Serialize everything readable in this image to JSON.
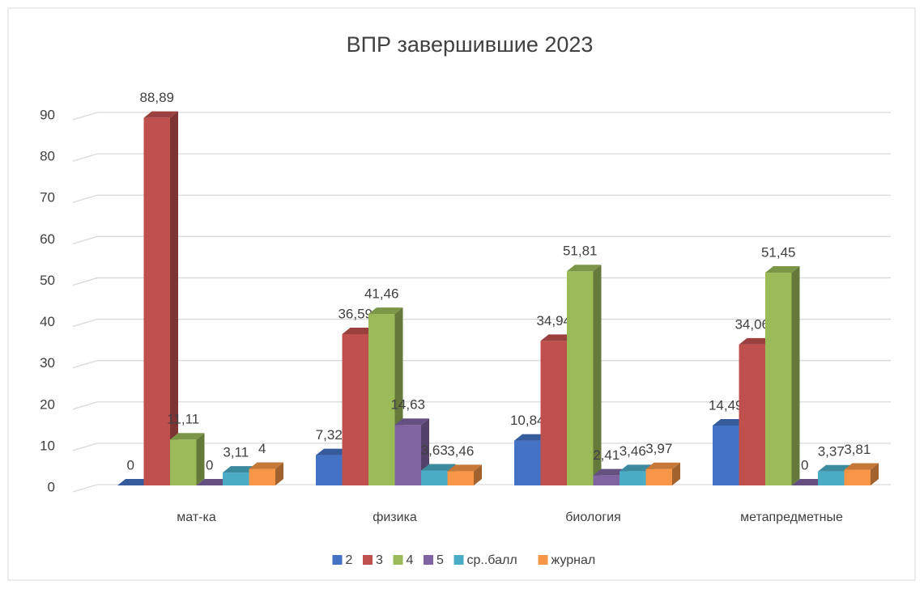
{
  "chart_data": {
    "type": "bar3d",
    "title": "ВПР завершившие 2023",
    "categories": [
      "мат-ка",
      "физика",
      "биология",
      "метапредметные"
    ],
    "series": [
      {
        "name": "2",
        "color": "#4472c4",
        "values": [
          0,
          7.32,
          10.84,
          14.49
        ],
        "value_labels": [
          "0",
          "7,32",
          "10,84",
          "14,49"
        ]
      },
      {
        "name": "3",
        "color": "#c0504d",
        "values": [
          88.89,
          36.59,
          34.94,
          34.06
        ],
        "value_labels": [
          "88,89",
          "36,59",
          "34,94",
          "34,06"
        ]
      },
      {
        "name": "4",
        "color": "#9bbb59",
        "values": [
          11.11,
          41.46,
          51.81,
          51.45
        ],
        "value_labels": [
          "11,11",
          "41,46",
          "51,81",
          "51,45"
        ]
      },
      {
        "name": "5",
        "color": "#8064a2",
        "values": [
          0,
          14.63,
          2.41,
          0
        ],
        "value_labels": [
          "0",
          "14,63",
          "2,41",
          "0"
        ]
      },
      {
        "name": "ср..балл",
        "color": "#4bacc6",
        "values": [
          3.11,
          3.63,
          3.46,
          3.37
        ],
        "value_labels": [
          "3,11",
          "3,63",
          "3,46",
          "3,37"
        ]
      },
      {
        "name": "журнал",
        "color": "#f79646",
        "values": [
          4,
          3.46,
          3.97,
          3.81
        ],
        "value_labels": [
          "4",
          "3,46",
          "3,97",
          "3,81"
        ]
      }
    ],
    "ylim": [
      0,
      90
    ],
    "yticks": [
      0,
      10,
      20,
      30,
      40,
      50,
      60,
      70,
      80,
      90
    ],
    "grid": true,
    "legend": "bottom"
  }
}
